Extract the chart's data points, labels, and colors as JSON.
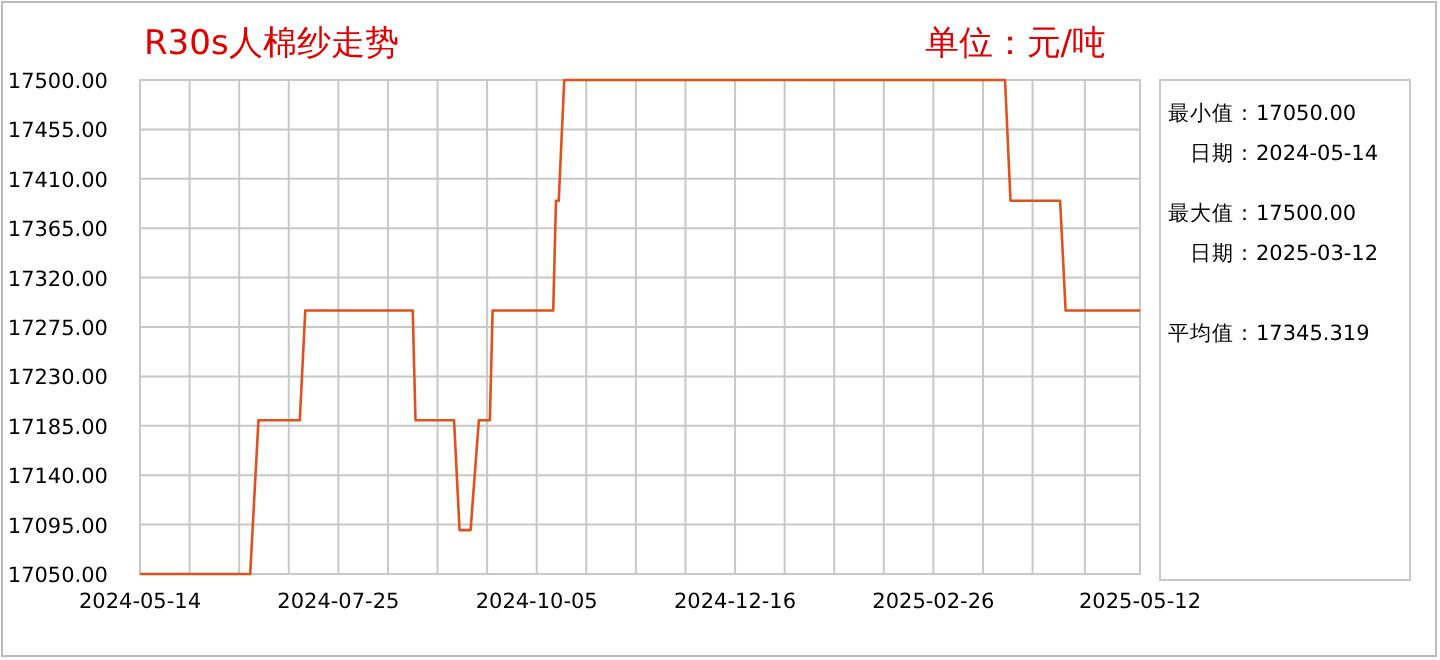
{
  "chart_data": {
    "type": "line",
    "title": "R30s人棉纱走势",
    "subtitle": "单位：元/吨",
    "x": [
      "2024-05-14",
      "2024-06-23",
      "2024-06-26",
      "2024-07-11",
      "2024-07-13",
      "2024-08-21",
      "2024-08-22",
      "2024-09-05",
      "2024-09-07",
      "2024-09-11",
      "2024-09-14",
      "2024-09-18",
      "2024-09-19",
      "2024-10-11",
      "2024-10-12",
      "2024-10-13",
      "2024-10-15",
      "2025-03-24",
      "2025-03-26",
      "2025-04-13",
      "2025-04-15",
      "2025-05-12"
    ],
    "series": [
      {
        "color": "#e0521c",
        "values": [
          17050,
          17050,
          17190,
          17190,
          17290,
          17290,
          17190,
          17190,
          17090,
          17090,
          17190,
          17190,
          17290,
          17290,
          17390,
          17390,
          17500,
          17500,
          17390,
          17390,
          17290,
          17290
        ]
      }
    ],
    "xlim": [
      "2024-05-14",
      "2025-05-12"
    ],
    "xticks": [
      "2024-05-14",
      {
        "value": "2024-06-01",
        "label": null
      },
      {
        "value": "2024-06-19",
        "label": null
      },
      {
        "value": "2024-07-07",
        "label": null
      },
      "2024-07-25",
      {
        "value": "2024-08-12",
        "label": null
      },
      {
        "value": "2024-08-30",
        "label": null
      },
      {
        "value": "2024-09-17",
        "label": null
      },
      "2024-10-05",
      {
        "value": "2024-10-23",
        "label": null
      },
      {
        "value": "2024-11-10",
        "label": null
      },
      {
        "value": "2024-11-28",
        "label": null
      },
      "2024-12-16",
      {
        "value": "2025-01-03",
        "label": null
      },
      {
        "value": "2025-01-21",
        "label": null
      },
      {
        "value": "2025-02-08",
        "label": null
      },
      "2025-02-26",
      {
        "value": "2025-03-16",
        "label": null
      },
      {
        "value": "2025-04-03",
        "label": null
      },
      {
        "value": "2025-04-22",
        "label": null
      },
      "2025-05-12"
    ],
    "ylim": [
      17050,
      17500
    ],
    "yticks": [
      {
        "value": 17050,
        "label": "17050.00"
      },
      {
        "value": 17095,
        "label": "17095.00"
      },
      {
        "value": 17140,
        "label": "17140.00"
      },
      {
        "value": 17185,
        "label": "17185.00"
      },
      {
        "value": 17230,
        "label": "17230.00"
      },
      {
        "value": 17275,
        "label": "17275.00"
      },
      {
        "value": 17320,
        "label": "17320.00"
      },
      {
        "value": 17365,
        "label": "17365.00"
      },
      {
        "value": 17410,
        "label": "17410.00"
      },
      {
        "value": 17455,
        "label": "17455.00"
      },
      {
        "value": 17500,
        "label": "17500.00"
      }
    ],
    "grid": true,
    "annotations": [
      "最小值：17050.00",
      "　日期：2024-05-14",
      "最大值：17500.00",
      "　日期：2025-03-12",
      "平均值：17345.319"
    ]
  }
}
